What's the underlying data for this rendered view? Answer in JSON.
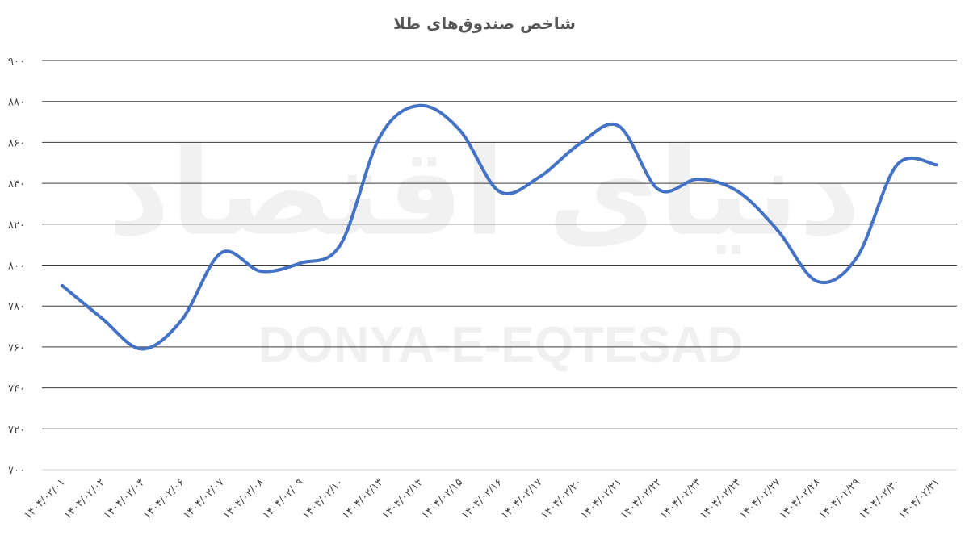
{
  "chart_data": {
    "type": "line",
    "title": "شاخص صندوق‌های طلا",
    "watermark": [
      "دنیای اقتصاد",
      "DONYA-E-EQTESAD"
    ],
    "categories": [
      "۱۴۰۴/۰۲/۰۱",
      "۱۴۰۴/۰۲/۰۲",
      "۱۴۰۴/۰۲/۰۳",
      "۱۴۰۴/۰۲/۰۶",
      "۱۴۰۴/۰۲/۰۷",
      "۱۴۰۴/۰۲/۰۸",
      "۱۴۰۴/۰۲/۰۹",
      "۱۴۰۴/۰۲/۱۰",
      "۱۴۰۴/۰۲/۱۳",
      "۱۴۰۴/۰۲/۱۴",
      "۱۴۰۴/۰۲/۱۵",
      "۱۴۰۴/۰۲/۱۶",
      "۱۴۰۴/۰۲/۱۷",
      "۱۴۰۴/۰۲/۲۰",
      "۱۴۰۴/۰۲/۲۱",
      "۱۴۰۴/۰۲/۲۲",
      "۱۴۰۴/۰۲/۲۳",
      "۱۴۰۴/۰۲/۲۴",
      "۱۴۰۴/۰۲/۲۷",
      "۱۴۰۴/۰۲/۲۸",
      "۱۴۰۴/۰۲/۲۹",
      "۱۴۰۴/۰۲/۳۰",
      "۱۴۰۴/۰۲/۳۱"
    ],
    "values": [
      790,
      774,
      759,
      773,
      806,
      797,
      801,
      810,
      863,
      878,
      866,
      836,
      843,
      859,
      868,
      837,
      842,
      836,
      817,
      792,
      804,
      849,
      849
    ],
    "color": "#4472c4",
    "ylim": [
      700,
      900
    ],
    "yticks": [
      {
        "value": 700,
        "label": "۷۰۰"
      },
      {
        "value": 720,
        "label": "۷۲۰"
      },
      {
        "value": 740,
        "label": "۷۴۰"
      },
      {
        "value": 760,
        "label": "۷۶۰"
      },
      {
        "value": 780,
        "label": "۷۸۰"
      },
      {
        "value": 800,
        "label": "۸۰۰"
      },
      {
        "value": 820,
        "label": "۸۲۰"
      },
      {
        "value": 840,
        "label": "۸۴۰"
      },
      {
        "value": 860,
        "label": "۸۶۰"
      },
      {
        "value": 880,
        "label": "۸۸۰"
      },
      {
        "value": 900,
        "label": "۹۰۰"
      }
    ],
    "grid": true
  }
}
